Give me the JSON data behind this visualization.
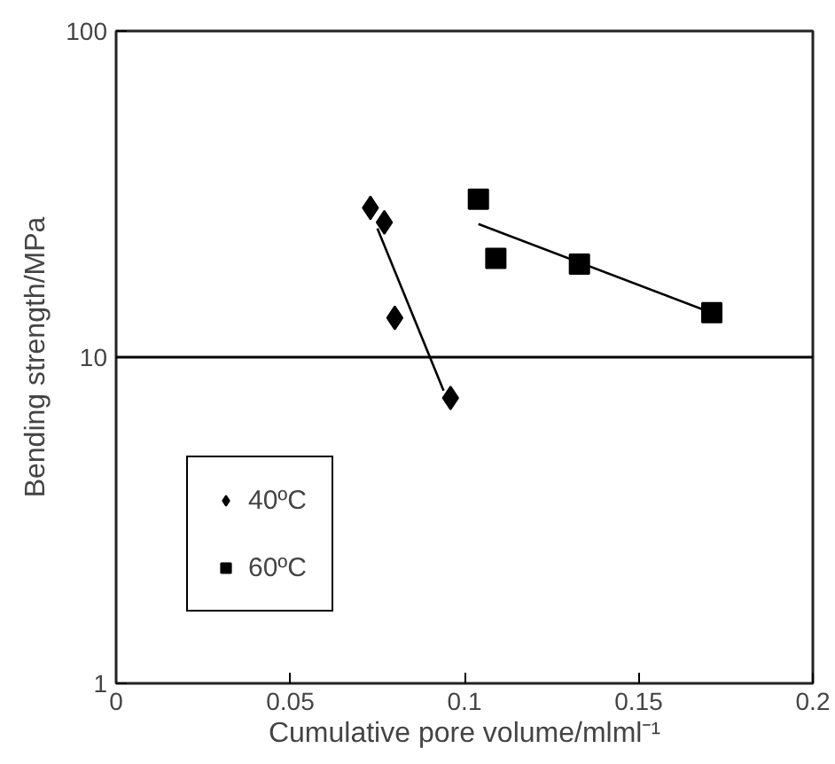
{
  "chart_data": {
    "type": "scatter",
    "xlabel": "Cumulative pore volume/mlml⁻¹",
    "ylabel": "Bending strength/MPa",
    "xlim": [
      0,
      0.2
    ],
    "xticks": [
      0,
      0.05,
      0.1,
      0.15,
      0.2
    ],
    "ylim": [
      1,
      100
    ],
    "yticks": [
      1,
      10,
      100
    ],
    "log": "y",
    "grid": false,
    "legend": "bottom left",
    "ref_lines": [
      {
        "axis": "y",
        "value": 10,
        "color": "#000000"
      }
    ],
    "series": [
      {
        "name": "40ºC",
        "color": "#000000",
        "marker": "diamond",
        "x": [
          0.073,
          0.077,
          0.08,
          0.096
        ],
        "values": [
          28.7,
          25.9,
          13.2,
          7.5
        ]
      },
      {
        "name": "60ºC",
        "color": "#000000",
        "marker": "square",
        "x": [
          0.104,
          0.109,
          0.133,
          0.171
        ],
        "values": [
          30.5,
          20.1,
          19.3,
          13.7
        ]
      },
      {
        "type": "line",
        "color": "#000000",
        "x": [
          0.075,
          0.094
        ],
        "values": [
          24.8,
          7.9
        ]
      },
      {
        "type": "line",
        "color": "#000000",
        "x": [
          0.104,
          0.17
        ],
        "values": [
          25.6,
          13.8
        ]
      }
    ]
  }
}
